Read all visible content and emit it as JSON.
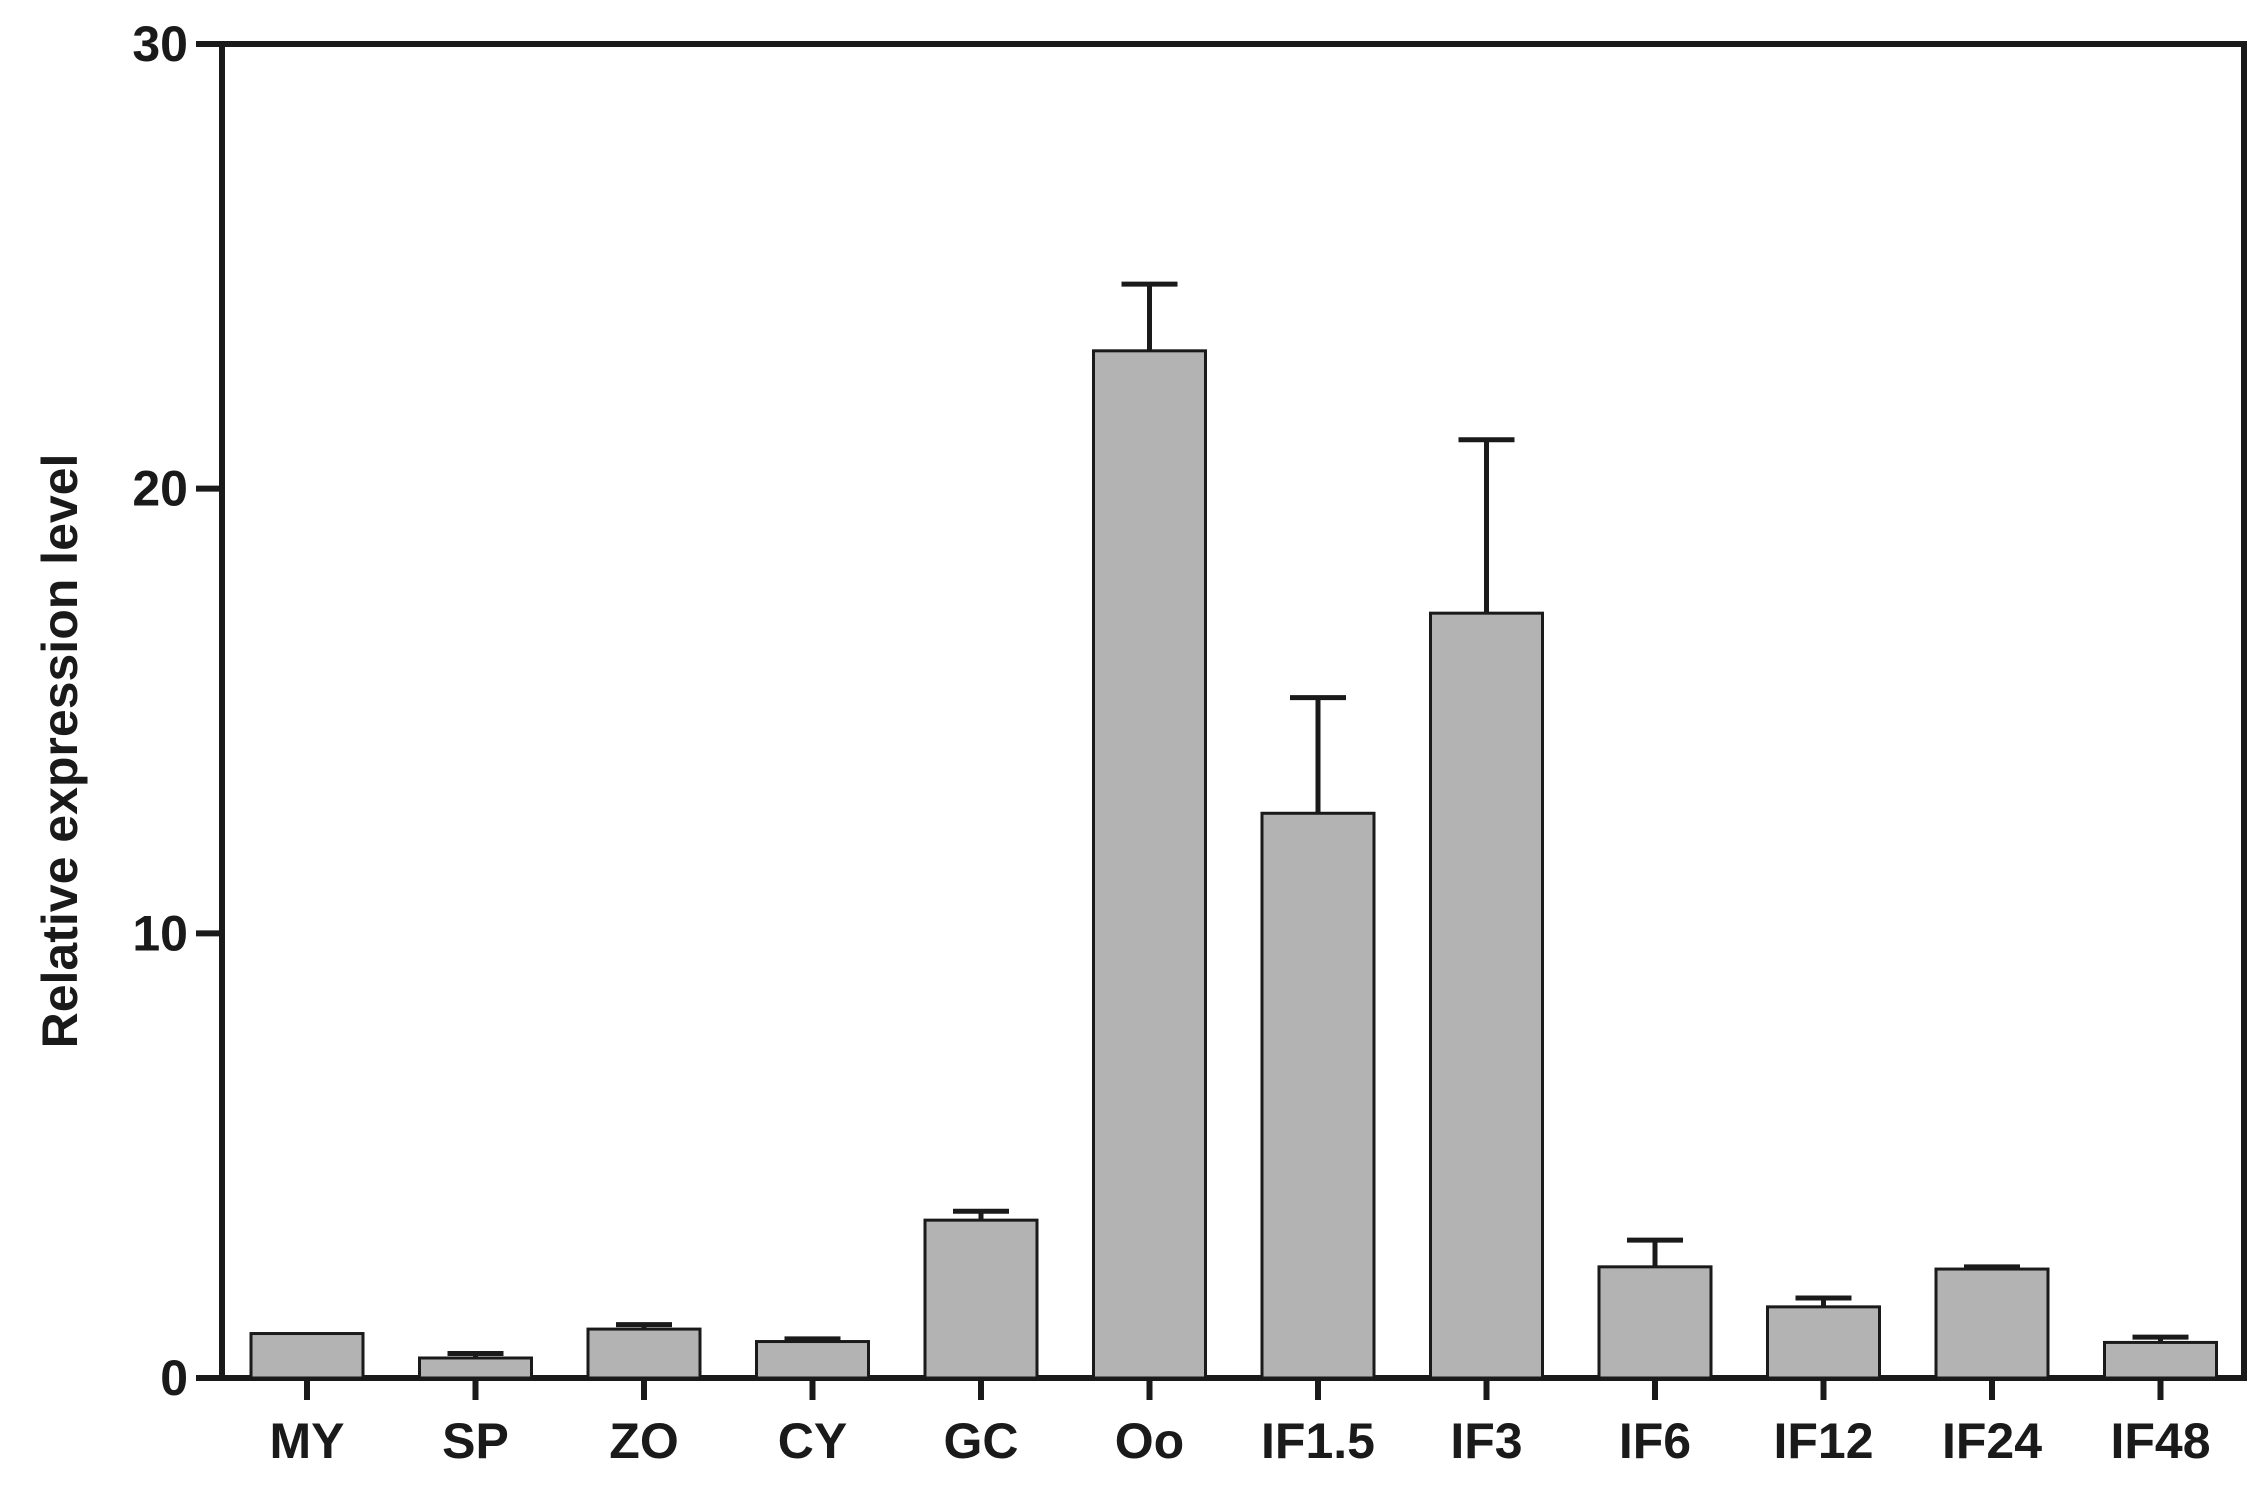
{
  "chart_data": {
    "type": "bar",
    "title": "",
    "xlabel": "",
    "ylabel": "Relative expression level",
    "ylim": [
      0,
      30
    ],
    "yticks": [
      0,
      10,
      20,
      30
    ],
    "y_tick_labels": [
      "0",
      "10",
      "20",
      "30"
    ],
    "grid": false,
    "legend": "none",
    "categories": [
      "MY",
      "SP",
      "ZO",
      "CY",
      "GC",
      "Oo",
      "IF1.5",
      "IF3",
      "IF6",
      "IF12",
      "IF24",
      "IF48"
    ],
    "series": [
      {
        "values": [
          1.0,
          0.45,
          1.1,
          0.82,
          3.55,
          23.1,
          12.7,
          17.2,
          2.5,
          1.6,
          2.45,
          0.8
        ],
        "error_upper": [
          1.0,
          0.55,
          1.2,
          0.88,
          3.75,
          24.6,
          15.3,
          21.1,
          3.1,
          1.8,
          2.5,
          0.92
        ]
      }
    ],
    "colors": {
      "bar_fill": "#b3b3b3",
      "bar_stroke": "#1a1a1a",
      "axis": "#1a1a1a"
    }
  }
}
